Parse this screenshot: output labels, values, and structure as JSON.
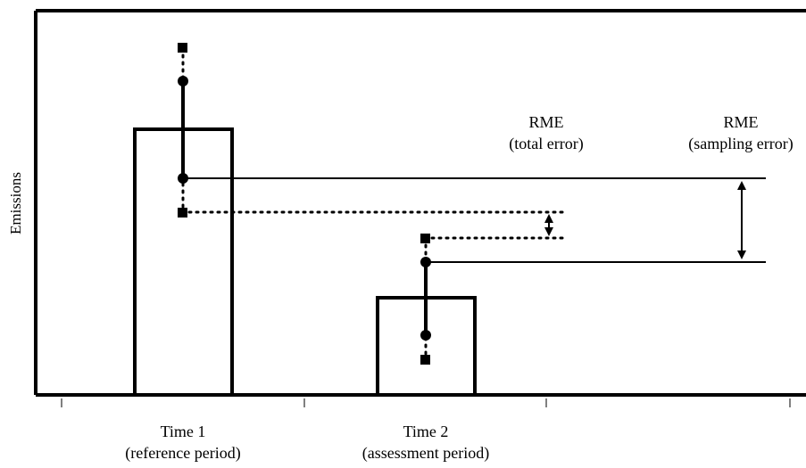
{
  "diagram": {
    "ylabel": "Emissions",
    "bars": [
      {
        "id": "time1",
        "label": "Time 1",
        "sublabel": "(reference period)"
      },
      {
        "id": "time2",
        "label": "Time 2",
        "sublabel": "(assessment period)"
      }
    ],
    "annotations": {
      "total_error": {
        "title": "RME",
        "subtitle": "(total error)"
      },
      "sampling_error": {
        "title": "RME",
        "subtitle": "(sampling error)"
      }
    },
    "colors": {
      "ink": "#000000",
      "background": "#ffffff"
    }
  }
}
